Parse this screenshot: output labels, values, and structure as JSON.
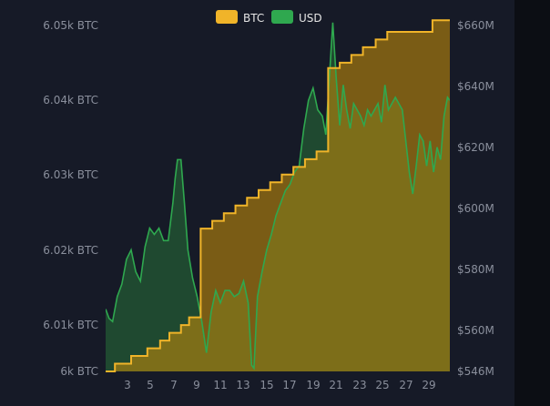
{
  "chart_data": {
    "type": "line",
    "legend": [
      {
        "label": "BTC",
        "color": "#f0b429"
      },
      {
        "label": "USD",
        "color": "#2fa84f"
      }
    ],
    "legend_position": "top-center",
    "x_ticks": [
      "3",
      "5",
      "7",
      "9",
      "11",
      "13",
      "15",
      "17",
      "19",
      "21",
      "23",
      "25",
      "27",
      "29"
    ],
    "xlim": [
      1,
      30.7
    ],
    "left_axis": {
      "ticks": [
        "6k BTC",
        "6.01k BTC",
        "6.02k BTC",
        "6.03k BTC",
        "6.04k BTC",
        "6.05k BTC"
      ],
      "ylim": [
        6000,
        6046
      ]
    },
    "right_axis": {
      "ticks": [
        "$546M",
        "$560M",
        "$580M",
        "$600M",
        "$620M",
        "$640M",
        "$660M"
      ],
      "ylim": [
        546,
        660
      ]
    },
    "series": [
      {
        "name": "BTC",
        "color": "#f0b429",
        "axis": "left",
        "step": true,
        "points": [
          [
            1,
            6000
          ],
          [
            1.8,
            6001
          ],
          [
            3.2,
            6002
          ],
          [
            4.6,
            6003
          ],
          [
            5.7,
            6004
          ],
          [
            6.5,
            6005
          ],
          [
            7.5,
            6006
          ],
          [
            8.2,
            6007
          ],
          [
            9.2,
            6018.5
          ],
          [
            10.2,
            6019.5
          ],
          [
            11.2,
            6020.5
          ],
          [
            12.2,
            6021.5
          ],
          [
            13.2,
            6022.5
          ],
          [
            14.2,
            6023.5
          ],
          [
            15.2,
            6024.5
          ],
          [
            16.2,
            6025.5
          ],
          [
            17.2,
            6026.5
          ],
          [
            18.2,
            6027.5
          ],
          [
            19.2,
            6028.5
          ],
          [
            20.2,
            6039.3
          ],
          [
            21.2,
            6040
          ],
          [
            22.2,
            6041
          ],
          [
            23.2,
            6042
          ],
          [
            24.3,
            6043
          ],
          [
            25.3,
            6044
          ],
          [
            29.2,
            6045.5
          ],
          [
            30.7,
            6045.5
          ]
        ]
      },
      {
        "name": "USD",
        "color": "#2fa84f",
        "axis": "right",
        "points": [
          [
            1,
            566
          ],
          [
            1.3,
            563
          ],
          [
            1.6,
            562
          ],
          [
            2,
            570
          ],
          [
            2.4,
            574
          ],
          [
            2.8,
            582
          ],
          [
            3.2,
            585
          ],
          [
            3.6,
            578
          ],
          [
            4,
            575
          ],
          [
            4.4,
            586
          ],
          [
            4.8,
            592
          ],
          [
            5.2,
            590
          ],
          [
            5.6,
            592
          ],
          [
            6,
            588
          ],
          [
            6.4,
            588
          ],
          [
            6.8,
            600
          ],
          [
            7,
            608
          ],
          [
            7.2,
            614
          ],
          [
            7.5,
            614
          ],
          [
            7.8,
            600
          ],
          [
            8.1,
            585
          ],
          [
            8.5,
            576
          ],
          [
            8.9,
            570
          ],
          [
            9.3,
            562
          ],
          [
            9.7,
            552
          ],
          [
            10.1,
            565
          ],
          [
            10.5,
            572
          ],
          [
            10.9,
            568
          ],
          [
            11.3,
            572
          ],
          [
            11.7,
            572
          ],
          [
            12.1,
            570
          ],
          [
            12.5,
            571
          ],
          [
            12.9,
            575
          ],
          [
            13.3,
            568
          ],
          [
            13.6,
            548
          ],
          [
            13.8,
            547
          ],
          [
            14.1,
            570
          ],
          [
            14.5,
            578
          ],
          [
            14.9,
            585
          ],
          [
            15.3,
            590
          ],
          [
            15.7,
            596
          ],
          [
            16.1,
            600
          ],
          [
            16.5,
            604
          ],
          [
            16.9,
            606
          ],
          [
            17.3,
            610
          ],
          [
            17.7,
            612
          ],
          [
            18.1,
            624
          ],
          [
            18.5,
            633
          ],
          [
            18.9,
            637
          ],
          [
            19.3,
            630
          ],
          [
            19.7,
            628
          ],
          [
            20,
            622
          ],
          [
            20.3,
            640
          ],
          [
            20.6,
            658
          ],
          [
            20.9,
            640
          ],
          [
            21.2,
            625
          ],
          [
            21.5,
            638
          ],
          [
            21.8,
            630
          ],
          [
            22.1,
            624
          ],
          [
            22.4,
            632
          ],
          [
            22.7,
            630
          ],
          [
            23,
            628
          ],
          [
            23.3,
            625
          ],
          [
            23.6,
            630
          ],
          [
            23.9,
            628
          ],
          [
            24.2,
            630
          ],
          [
            24.5,
            632
          ],
          [
            24.8,
            626
          ],
          [
            25.1,
            638
          ],
          [
            25.4,
            630
          ],
          [
            25.7,
            632
          ],
          [
            26,
            634
          ],
          [
            26.3,
            632
          ],
          [
            26.6,
            630
          ],
          [
            26.9,
            620
          ],
          [
            27.2,
            610
          ],
          [
            27.5,
            603
          ],
          [
            27.8,
            612
          ],
          [
            28.1,
            622
          ],
          [
            28.4,
            620
          ],
          [
            28.7,
            612
          ],
          [
            29,
            620
          ],
          [
            29.3,
            610
          ],
          [
            29.6,
            618
          ],
          [
            29.9,
            614
          ],
          [
            30.2,
            628
          ],
          [
            30.5,
            634
          ],
          [
            30.7,
            633
          ]
        ]
      }
    ]
  }
}
